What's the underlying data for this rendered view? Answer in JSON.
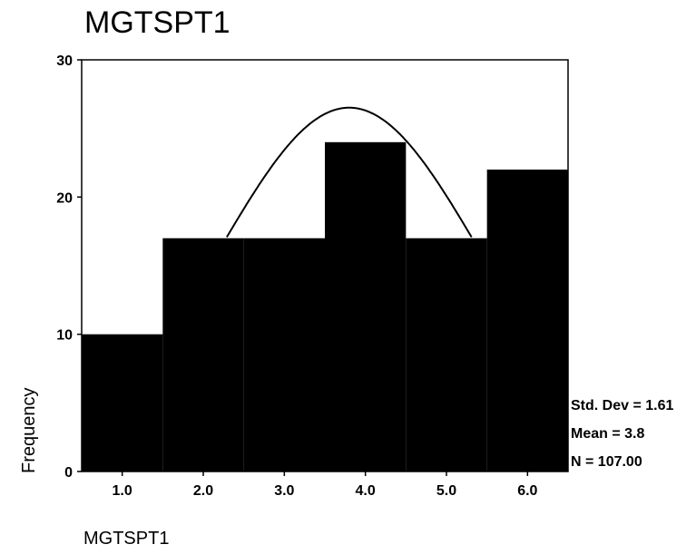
{
  "chart_data": {
    "type": "bar",
    "title": "MGTSPT1",
    "xlabel": "MGTSPT1",
    "ylabel": "Frequency",
    "categories": [
      "1.0",
      "2.0",
      "3.0",
      "4.0",
      "5.0",
      "6.0"
    ],
    "values": [
      10,
      17,
      17,
      24,
      17,
      22
    ],
    "ylim": [
      0,
      30
    ],
    "xlim": [
      0.5,
      6.5
    ],
    "y_ticks": [
      "0",
      "10",
      "20",
      "30"
    ],
    "normal_curve": {
      "mean": 3.8,
      "std_dev": 1.61,
      "n": 107
    },
    "stats": {
      "std_dev": "Std. Dev = 1.61",
      "mean": "Mean = 3.8",
      "n": "N = 107.00"
    },
    "colors": {
      "bar": "#000000",
      "curve": "#000000",
      "background": "#ffffff"
    },
    "grid": false
  }
}
